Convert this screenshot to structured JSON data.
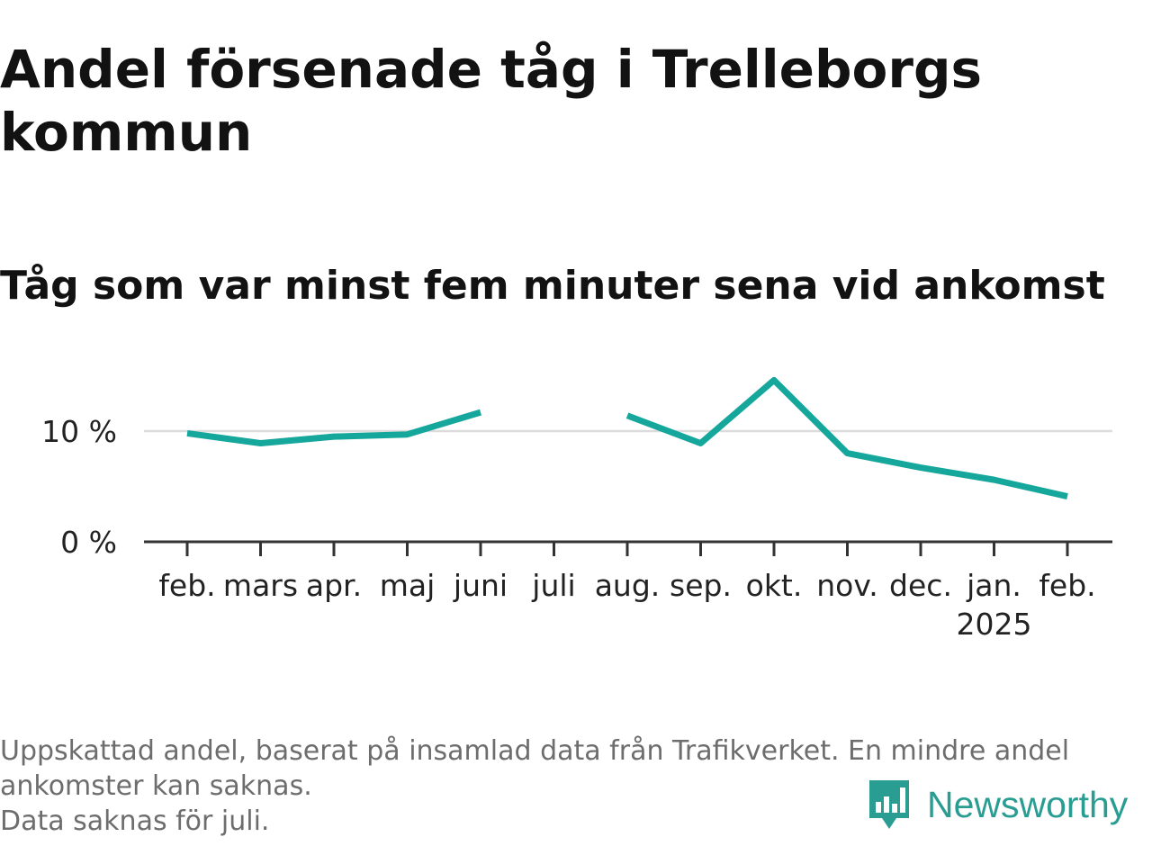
{
  "title": "Andel försenade tåg i Trelleborgs kommun",
  "subtitle": "Tåg som var minst fem minuter sena vid ankomst",
  "notes": [
    "Uppskattad andel, baserat på insamlad data från Trafikverket. En mindre andel",
    "ankomster kan saknas.",
    "Data saknas för juli."
  ],
  "brand": {
    "name": "Newsworthy",
    "icon": "newsworthy-logo-icon",
    "color": "#2a9d92"
  },
  "chart_data": {
    "type": "line",
    "categories": [
      "feb.",
      "mars",
      "apr.",
      "maj",
      "juni",
      "juli",
      "aug.",
      "sep.",
      "okt.",
      "nov.",
      "dec.",
      "jan.",
      "feb."
    ],
    "year_labels": [
      "",
      "",
      "",
      "",
      "",
      "",
      "",
      "",
      "",
      "",
      "",
      "2025",
      ""
    ],
    "series": [
      {
        "color": "#16a79c",
        "values": [
          9.8,
          8.9,
          9.5,
          9.7,
          11.7,
          null,
          11.4,
          8.9,
          14.6,
          8.0,
          6.7,
          5.6,
          4.1
        ]
      }
    ],
    "yticks": [
      0,
      10
    ],
    "ytick_labels": [
      "0 %",
      "10 %"
    ],
    "ylim": [
      0,
      15
    ],
    "grid": true,
    "xlabel": "",
    "ylabel": ""
  }
}
